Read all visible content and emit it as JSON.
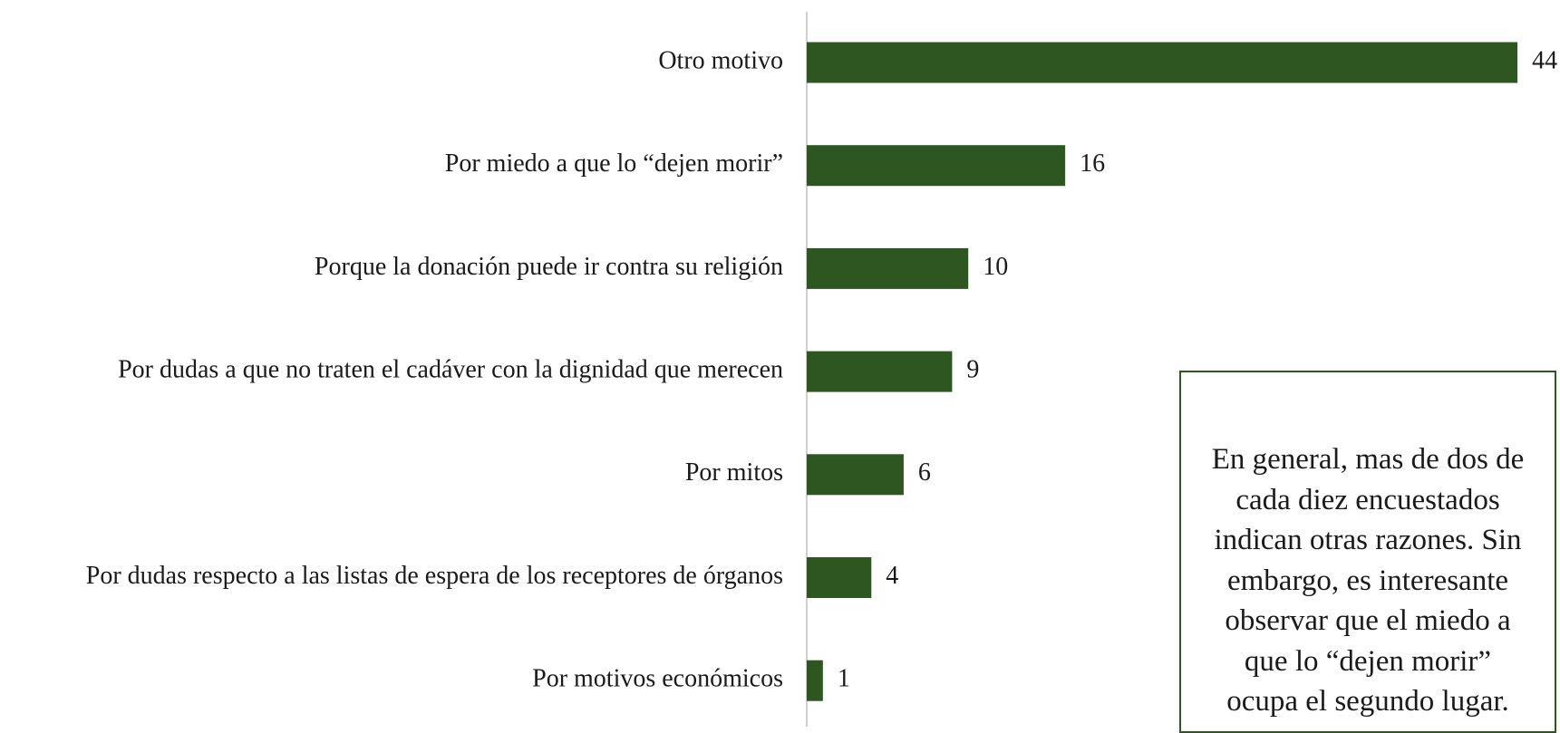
{
  "chart_data": {
    "type": "bar",
    "orientation": "horizontal",
    "categories": [
      "Otro motivo",
      "Por miedo a que lo “dejen morir”",
      "Porque la donación puede ir contra su religión",
      "Por dudas a que no traten el cadáver con la dignidad que merecen",
      "Por mitos",
      "Por dudas respecto a las listas de espera de los receptores de órganos",
      "Por motivos económicos"
    ],
    "values": [
      44,
      16,
      10,
      9,
      6,
      4,
      1
    ],
    "color": "#2d5620",
    "annotation": [
      "En general, mas de dos de",
      "cada diez encuestados",
      "indican otras razones. Sin",
      "embargo, es interesante",
      "observar que el miedo a",
      "que lo “dejen morir”",
      "ocupa el segundo lugar."
    ]
  }
}
